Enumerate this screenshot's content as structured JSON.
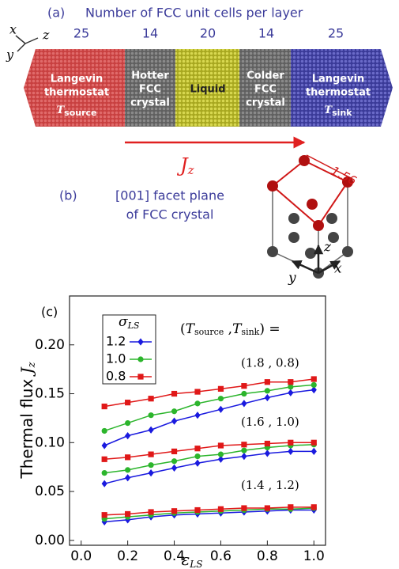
{
  "panel_a": {
    "label": "(a)",
    "title": "Number of FCC unit cells per layer",
    "axes": {
      "x": "x",
      "y": "y",
      "z": "z"
    },
    "cells": [
      25,
      14,
      20,
      14,
      25
    ],
    "blocks": [
      {
        "lines": [
          "Langevin",
          "thermostat"
        ],
        "symbol": "T",
        "sub": "source"
      },
      {
        "lines": [
          "Hotter",
          "FCC",
          "crystal"
        ]
      },
      {
        "lines": [
          "Liquid"
        ]
      },
      {
        "lines": [
          "Colder",
          "FCC",
          "crystal"
        ]
      },
      {
        "lines": [
          "Langevin",
          "thermostat"
        ],
        "symbol": "T",
        "sub": "sink"
      }
    ],
    "flux": {
      "symbol": "J",
      "sub": "z"
    }
  },
  "panel_b": {
    "label": "(b)",
    "lines": [
      "[001] facet plane",
      "of FCC crystal"
    ],
    "length": "1.56",
    "axes": {
      "x": "x",
      "y": "y",
      "z": "z"
    }
  },
  "chart_data": {
    "type": "line",
    "label": "(c)",
    "xlabel": {
      "symbol": "ε",
      "sub": "LS"
    },
    "ylabel": {
      "text": "Thermal flux ",
      "symbol": "J",
      "sub": "z"
    },
    "legend_title": {
      "symbol": "σ",
      "sub": "LS"
    },
    "condition_title": {
      "open": "(",
      "t1": "T",
      "s1": "source",
      "comma": " ,",
      "t2": "T",
      "s2": "sink",
      "close": ") ="
    },
    "groups": [
      "(1.8 , 0.8)",
      "(1.6 , 1.0)",
      "(1.4 , 1.2)"
    ],
    "x": [
      0.1,
      0.2,
      0.3,
      0.4,
      0.5,
      0.6,
      0.7,
      0.8,
      0.9,
      1.0
    ],
    "xlim": [
      -0.05,
      1.05
    ],
    "xticks": [
      {
        "value": 0,
        "label": "0.0"
      },
      0.2,
      0.4,
      0.6,
      0.8,
      {
        "value": 1,
        "label": "1.0"
      }
    ],
    "ylim": [
      -0.005,
      0.25
    ],
    "yticks": [
      {
        "value": 0,
        "label": "0.00"
      },
      0.05,
      {
        "value": 0.1,
        "label": "0.10"
      },
      0.15,
      {
        "value": 0.2,
        "label": "0.20"
      }
    ],
    "series": [
      {
        "name": "1.2",
        "color": "#1a1adf",
        "marker": "diamond",
        "values": [
          [
            0.097,
            0.107,
            0.113,
            0.122,
            0.128,
            0.134,
            0.14,
            0.146,
            0.151,
            0.154
          ],
          [
            0.058,
            0.064,
            0.069,
            0.074,
            0.079,
            0.083,
            0.086,
            0.089,
            0.091,
            0.091
          ],
          [
            0.019,
            0.021,
            0.024,
            0.026,
            0.027,
            0.028,
            0.029,
            0.03,
            0.031,
            0.031
          ]
        ]
      },
      {
        "name": "1.0",
        "color": "#2cb52c",
        "marker": "circle",
        "values": [
          [
            0.112,
            0.12,
            0.128,
            0.132,
            0.14,
            0.145,
            0.15,
            0.153,
            0.157,
            0.159
          ],
          [
            0.069,
            0.072,
            0.077,
            0.081,
            0.086,
            0.088,
            0.092,
            0.095,
            0.097,
            0.098
          ],
          [
            0.022,
            0.024,
            0.026,
            0.028,
            0.029,
            0.03,
            0.031,
            0.032,
            0.032,
            0.033
          ]
        ]
      },
      {
        "name": "0.8",
        "color": "#e01818",
        "marker": "square",
        "values": [
          [
            0.137,
            0.141,
            0.145,
            0.15,
            0.152,
            0.155,
            0.158,
            0.162,
            0.162,
            0.165
          ],
          [
            0.083,
            0.085,
            0.088,
            0.091,
            0.094,
            0.097,
            0.098,
            0.099,
            0.1,
            0.1
          ],
          [
            0.026,
            0.027,
            0.029,
            0.03,
            0.031,
            0.032,
            0.033,
            0.033,
            0.034,
            0.034
          ]
        ]
      }
    ]
  }
}
